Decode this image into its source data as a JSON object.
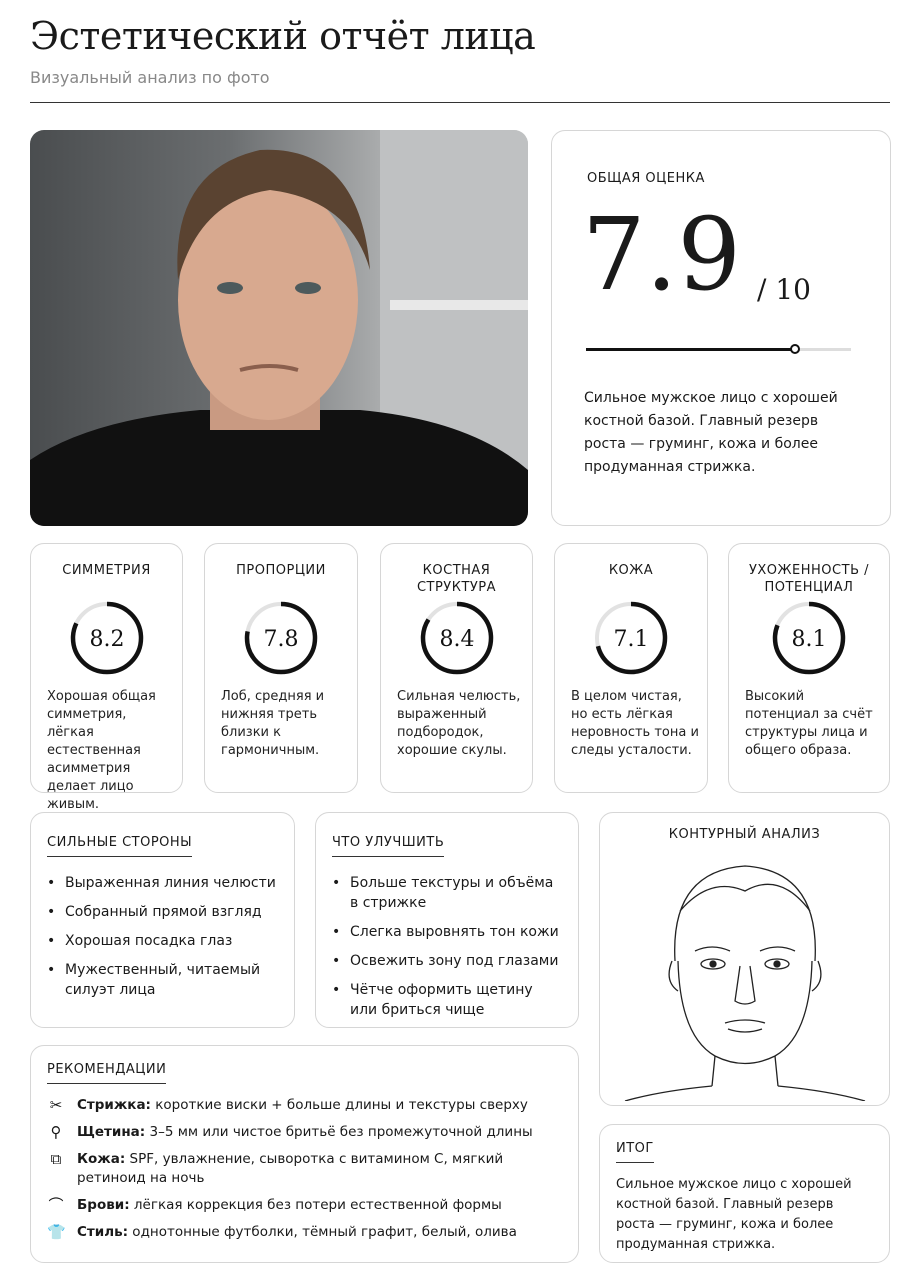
{
  "header": {
    "title": "Эстетический отчёт лица",
    "subtitle": "Визуальный анализ по фото"
  },
  "overall": {
    "label": "ОБЩАЯ ОЦЕНКА",
    "score": "7.9",
    "max": "/ 10",
    "fraction": 0.79,
    "summary": "Сильное мужское лицо с хорошей костной базой. Главный резерв роста — груминг, кожа и более продуманная стрижка."
  },
  "metrics": [
    {
      "label": "СИММЕТРИЯ",
      "score": "8.2",
      "value": 8.2,
      "desc": "Хорошая общая симметрия, лёгкая естественная асимметрия делает лицо живым."
    },
    {
      "label": "ПРОПОРЦИИ",
      "score": "7.8",
      "value": 7.8,
      "desc": "Лоб, средняя и нижняя треть близки к гармоничным."
    },
    {
      "label": "КОСТНАЯ СТРУКТУРА",
      "score": "8.4",
      "value": 8.4,
      "desc": "Сильная челюсть, выраженный подбородок, хорошие скулы."
    },
    {
      "label": "КОЖА",
      "score": "7.1",
      "value": 7.1,
      "desc": "В целом чистая, но есть лёгкая неровность тона и следы усталости."
    },
    {
      "label": "УХОЖЕННОСТЬ / ПОТЕНЦИАЛ",
      "score": "8.1",
      "value": 8.1,
      "desc": "Высокий потенциал за счёт структуры лица и общего образа."
    }
  ],
  "strengths": {
    "title": "СИЛЬНЫЕ СТОРОНЫ",
    "items": [
      "Выраженная линия челюсти",
      "Собранный прямой взгляд",
      "Хорошая посадка глаз",
      "Мужественный, читаемый силуэт лица"
    ]
  },
  "improve": {
    "title": "ЧТО УЛУЧШИТЬ",
    "items": [
      "Больше текстуры и объёма в стрижке",
      "Слегка выровнять тон кожи",
      "Освежить зону под глазами",
      "Чётче оформить щетину или бриться чище"
    ]
  },
  "contour": {
    "title": "КОНТУРНЫЙ АНАЛИЗ"
  },
  "recommendations": {
    "title": "РЕКОМЕНДАЦИИ",
    "items": [
      {
        "icon": "scissors-icon",
        "glyph": "✂",
        "label": "Стрижка:",
        "text": " короткие виски + больше длины и текстуры сверху"
      },
      {
        "icon": "razor-icon",
        "glyph": "⚲",
        "label": "Щетина:",
        "text": " 3–5 мм или чистое бритьё без промежуточной длины"
      },
      {
        "icon": "bottle-icon",
        "glyph": "⧉",
        "label": "Кожа:",
        "text": " SPF, увлажнение, сыворотка с витамином C, мягкий ретиноид на ночь"
      },
      {
        "icon": "eyebrow-icon",
        "glyph": "⌒",
        "label": "Брови:",
        "text": " лёгкая коррекция без потери естественной формы"
      },
      {
        "icon": "tshirt-icon",
        "glyph": "👕",
        "label": "Стиль:",
        "text": " однотонные футболки, тёмный графит, белый, олива"
      }
    ]
  },
  "verdict": {
    "title": "ИТОГ",
    "text": "Сильное мужское лицо с хорошей костной базой. Главный резерв роста — груминг, кожа и более продуманная стрижка."
  }
}
